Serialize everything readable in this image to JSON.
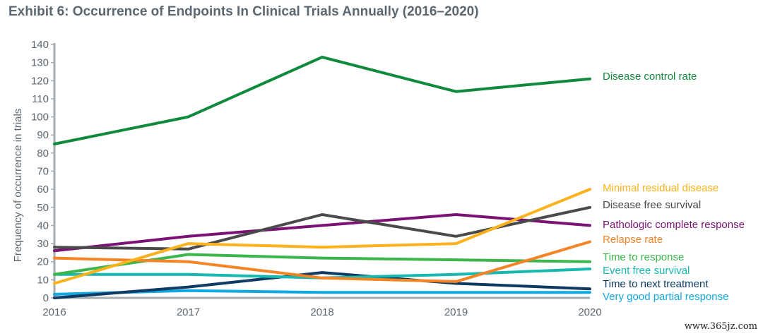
{
  "title": "Exhibit 6: Occurrence of Endpoints In Clinical Trials Annually (2016–2020)",
  "watermark": "www.365jz.com",
  "chart_data": {
    "type": "line",
    "title": "Exhibit 6: Occurrence of Endpoints In Clinical Trials Annually (2016–2020)",
    "xlabel": "",
    "ylabel": "Frequency of occurrence in trials",
    "x": [
      "2016",
      "2017",
      "2018",
      "2019",
      "2020"
    ],
    "ylim": [
      0,
      140
    ],
    "yticks": [
      0,
      10,
      20,
      30,
      40,
      50,
      60,
      70,
      80,
      90,
      100,
      110,
      120,
      130,
      140
    ],
    "grid": false,
    "legend": "direct labels at right end of lines",
    "series": [
      {
        "name": "Disease control rate",
        "color": "#0f8a3c",
        "values": [
          85,
          100,
          133,
          114,
          121
        ]
      },
      {
        "name": "Minimal residual disease",
        "color": "#fbb21d",
        "values": [
          8,
          30,
          28,
          30,
          60
        ]
      },
      {
        "name": "Disease free survival",
        "color": "#4a4a4a",
        "values": [
          28,
          27,
          46,
          34,
          50
        ]
      },
      {
        "name": "Pathologic complete response",
        "color": "#7b1374",
        "values": [
          26,
          34,
          40,
          46,
          40
        ]
      },
      {
        "name": "Relapse rate",
        "color": "#f58426",
        "values": [
          22,
          20,
          11,
          9,
          31
        ]
      },
      {
        "name": "Time to response",
        "color": "#3cb54a",
        "values": [
          13,
          24,
          22,
          21,
          20
        ]
      },
      {
        "name": "Event free survival",
        "color": "#17b8b0",
        "values": [
          13,
          13,
          11,
          13,
          16
        ]
      },
      {
        "name": "Time to next treatment",
        "color": "#0e3a63",
        "values": [
          0,
          6,
          14,
          8,
          5
        ]
      },
      {
        "name": "Very good partial response",
        "color": "#12a9e0",
        "values": [
          2,
          4,
          3,
          3,
          3
        ]
      }
    ]
  }
}
